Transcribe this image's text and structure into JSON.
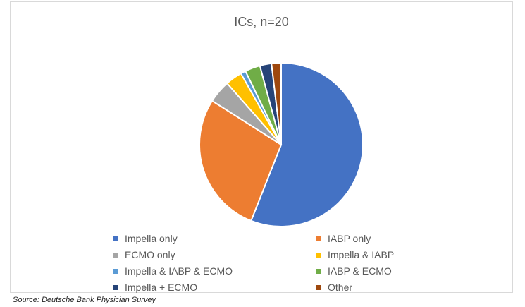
{
  "chart_data": {
    "type": "pie",
    "title": "ICs, n=20",
    "slices": [
      {
        "label": "Impella only",
        "value": 56,
        "color": "#4472C4"
      },
      {
        "label": "IABP only",
        "value": 28,
        "color": "#ED7D31"
      },
      {
        "label": "ECMO only",
        "value": 4.5,
        "color": "#A5A5A5"
      },
      {
        "label": "Impella & IABP",
        "value": 3.3,
        "color": "#FFC000"
      },
      {
        "label": "Impella & IABP & ECMO",
        "value": 1,
        "color": "#5B9BD5"
      },
      {
        "label": "IABP & ECMO",
        "value": 3,
        "color": "#70AD47"
      },
      {
        "label": "Impella + ECMO",
        "value": 2.3,
        "color": "#264478"
      },
      {
        "label": "Other",
        "value": 1.9,
        "color": "#9E480E"
      }
    ],
    "legend_position": "bottom"
  },
  "source": "Source: Deutsche Bank Physician Survey"
}
